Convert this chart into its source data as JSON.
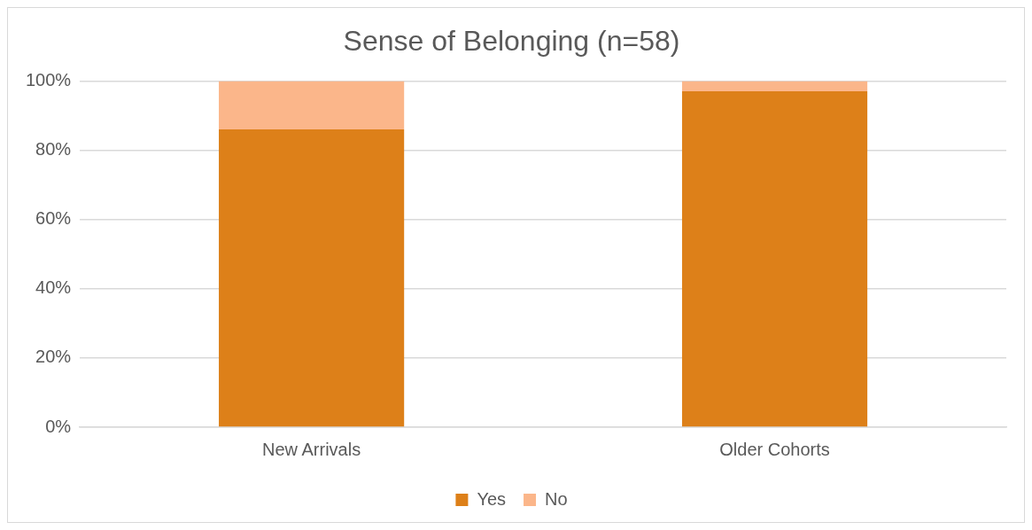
{
  "chart_data": {
    "type": "bar",
    "title": "Sense of Belonging (n=58)",
    "categories": [
      "New Arrivals",
      "Older Cohorts"
    ],
    "stacked": true,
    "series": [
      {
        "name": "Yes",
        "color": "#dd8019",
        "values": [
          86,
          97
        ]
      },
      {
        "name": "No",
        "color": "#fbb68a",
        "values": [
          14,
          3
        ]
      }
    ],
    "ylim": [
      0,
      100
    ],
    "yticks": [
      {
        "value": 0,
        "label": "0%"
      },
      {
        "value": 20,
        "label": "20%"
      },
      {
        "value": 40,
        "label": "40%"
      },
      {
        "value": 60,
        "label": "60%"
      },
      {
        "value": 80,
        "label": "80%"
      },
      {
        "value": 100,
        "label": "100%"
      }
    ],
    "grid": "y",
    "legend": "bottom"
  }
}
